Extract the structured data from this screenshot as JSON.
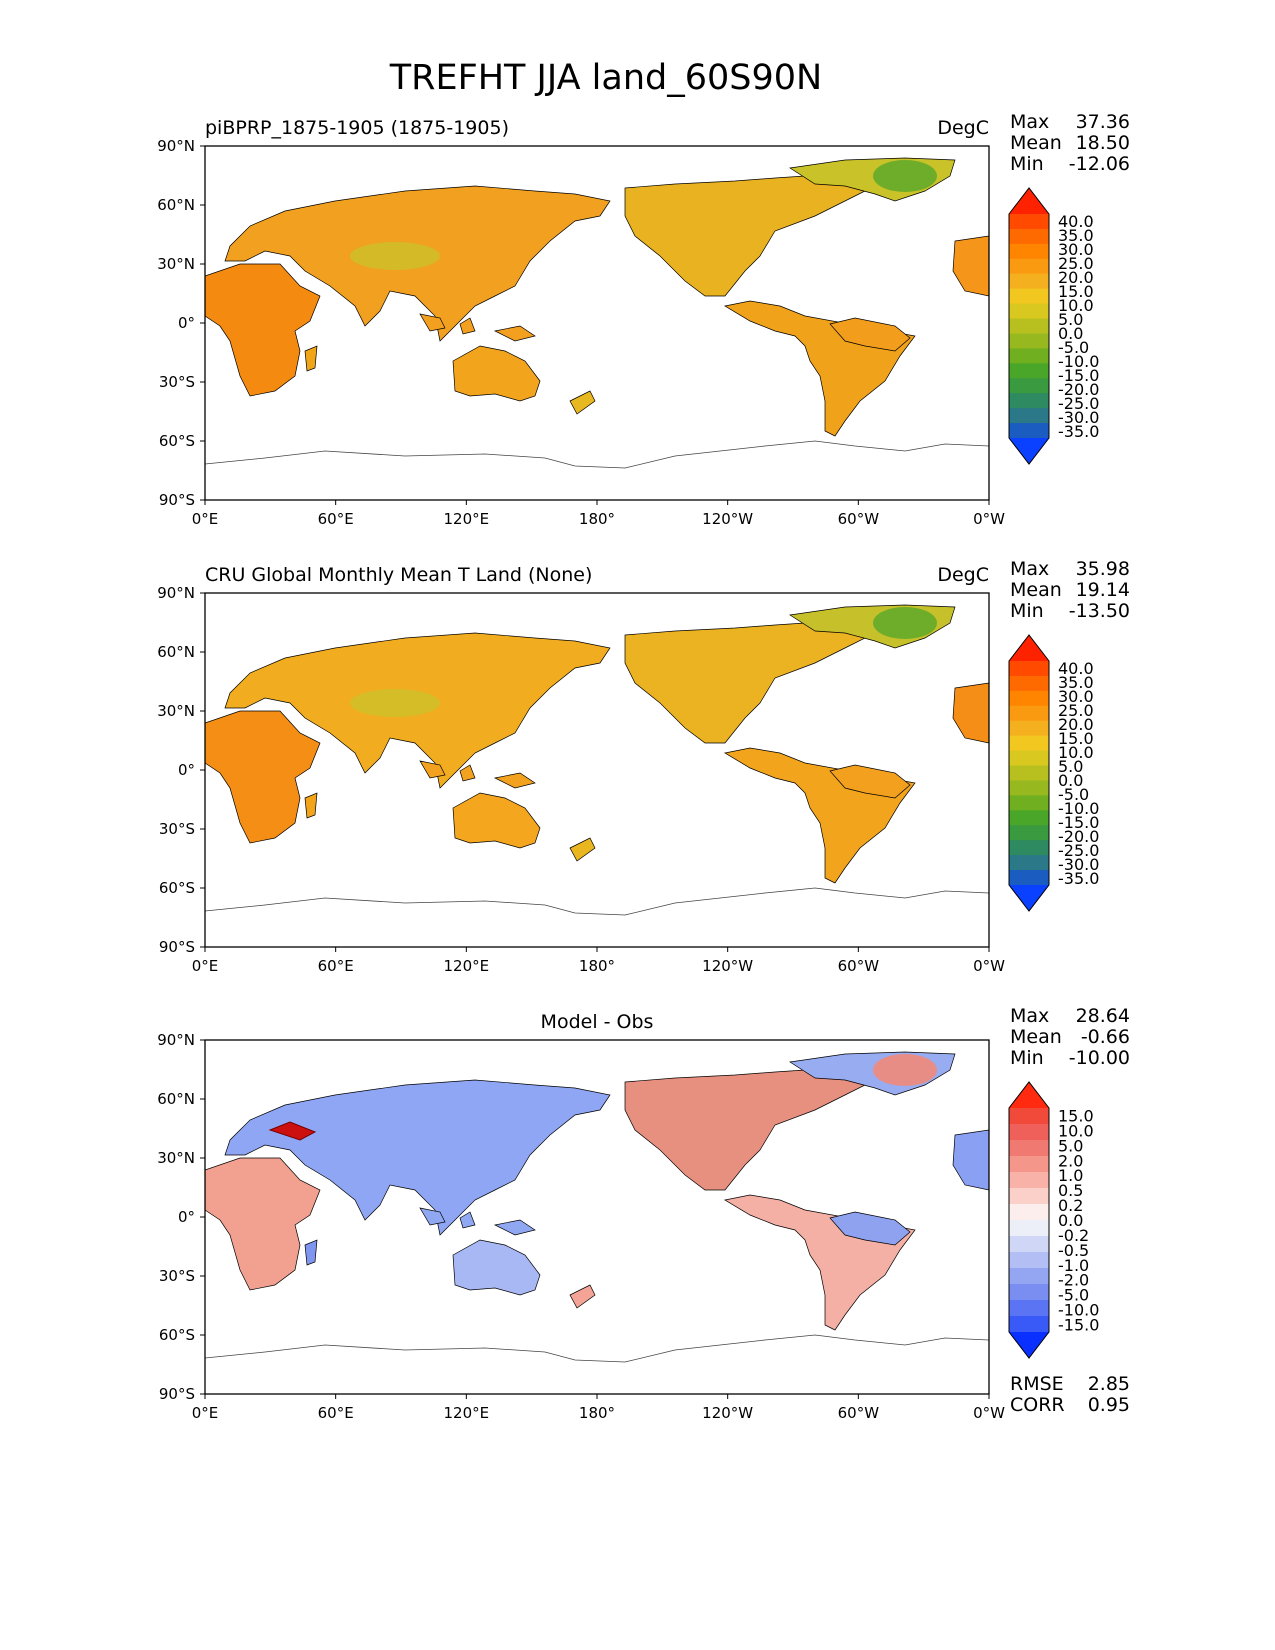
{
  "chart_data": {
    "type": "heatmap",
    "title": "TREFHT JJA land_60S90N",
    "xticks": [
      "0°E",
      "60°E",
      "120°E",
      "180°",
      "120°W",
      "60°W",
      "0°W"
    ],
    "yticks": [
      "90°N",
      "60°N",
      "30°N",
      "0°",
      "30°S",
      "60°S",
      "90°S"
    ],
    "xlim": [
      0,
      360
    ],
    "ylim": [
      -90,
      90
    ],
    "panels": [
      {
        "left_title": "piBPRP_1875-1905 (1875-1905)",
        "right_title": "DegC",
        "center_title": "",
        "stats": [
          {
            "label": "Max",
            "value": "37.36"
          },
          {
            "label": "Mean",
            "value": "18.50"
          },
          {
            "label": "Min",
            "value": "-12.06"
          }
        ],
        "colorbar": {
          "levels": [
            "40.0",
            "35.0",
            "30.0",
            "25.0",
            "20.0",
            "15.0",
            "10.0",
            "5.0",
            "0.0",
            "-5.0",
            "-10.0",
            "-15.0",
            "-20.0",
            "-25.0",
            "-30.0",
            "-35.0"
          ],
          "colors": [
            "#ff2200",
            "#ff4a00",
            "#ff6a00",
            "#ff8500",
            "#fa9a10",
            "#f5b020",
            "#f2c820",
            "#d8c820",
            "#b8c020",
            "#98b820",
            "#70b020",
            "#4aa628",
            "#3a9a40",
            "#2e8a60",
            "#2a7888",
            "#1a5cc0",
            "#0a40ff"
          ],
          "units": "DegC"
        },
        "map_style": "temp_model"
      },
      {
        "left_title": "CRU Global Monthly Mean T Land (None)",
        "right_title": "DegC",
        "center_title": "",
        "stats": [
          {
            "label": "Max",
            "value": "35.98"
          },
          {
            "label": "Mean",
            "value": "19.14"
          },
          {
            "label": "Min",
            "value": "-13.50"
          }
        ],
        "colorbar": {
          "levels": [
            "40.0",
            "35.0",
            "30.0",
            "25.0",
            "20.0",
            "15.0",
            "10.0",
            "5.0",
            "0.0",
            "-5.0",
            "-10.0",
            "-15.0",
            "-20.0",
            "-25.0",
            "-30.0",
            "-35.0"
          ],
          "colors": [
            "#ff2200",
            "#ff4a00",
            "#ff6a00",
            "#ff8500",
            "#fa9a10",
            "#f5b020",
            "#f2c820",
            "#d8c820",
            "#b8c020",
            "#98b820",
            "#70b020",
            "#4aa628",
            "#3a9a40",
            "#2e8a60",
            "#2a7888",
            "#1a5cc0",
            "#0a40ff"
          ],
          "units": "DegC"
        },
        "map_style": "temp_obs"
      },
      {
        "left_title": "",
        "right_title": "",
        "center_title": "Model - Obs",
        "stats": [
          {
            "label": "Max",
            "value": "28.64"
          },
          {
            "label": "Mean",
            "value": "-0.66"
          },
          {
            "label": "Min",
            "value": "-10.00"
          }
        ],
        "extra_stats": [
          {
            "label": "RMSE",
            "value": "2.85"
          },
          {
            "label": "CORR",
            "value": "0.95"
          }
        ],
        "colorbar": {
          "levels": [
            "15.0",
            "10.0",
            "5.0",
            "2.0",
            "1.0",
            "0.5",
            "0.2",
            "0.0",
            "-0.2",
            "-0.5",
            "-1.0",
            "-2.0",
            "-5.0",
            "-10.0",
            "-15.0"
          ],
          "colors": [
            "#ff2a10",
            "#f24a3a",
            "#f0605a",
            "#f07a72",
            "#f4968a",
            "#f8b2a8",
            "#fbd0c8",
            "#fdeeee",
            "#eceef8",
            "#cfd6f6",
            "#b2bef4",
            "#94a6f2",
            "#7a8ef2",
            "#5a74f4",
            "#3a5af8",
            "#0a30ff"
          ],
          "units": ""
        },
        "map_style": "diff"
      }
    ]
  }
}
